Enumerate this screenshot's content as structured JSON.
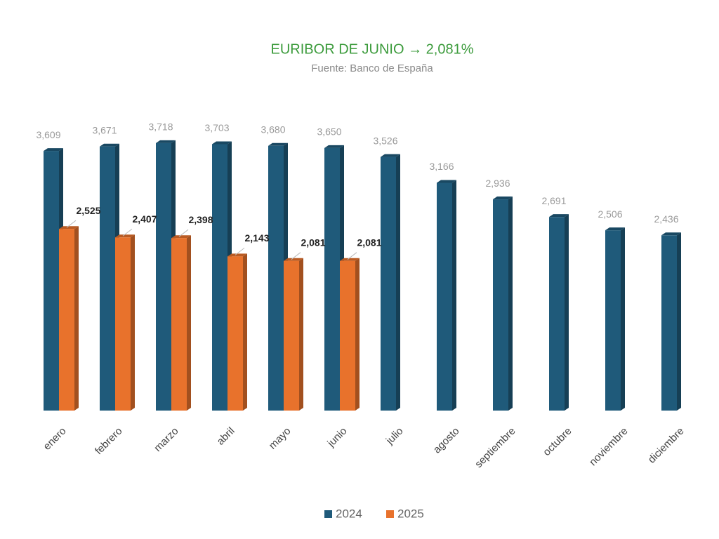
{
  "chart_data": {
    "type": "bar3d",
    "title": "EURIBOR DE JUNIO → 2,081%",
    "subtitle": "Fuente: Banco de España",
    "categories": [
      "enero",
      "febrero",
      "marzo",
      "abril",
      "mayo",
      "junio",
      "julio",
      "agosto",
      "septiembre",
      "octubre",
      "noviembre",
      "diciembre"
    ],
    "series": [
      {
        "name": "2024",
        "color": "#1f5a7a",
        "values": [
          3.609,
          3.671,
          3.718,
          3.703,
          3.68,
          3.65,
          3.526,
          3.166,
          2.936,
          2.691,
          2.506,
          2.436
        ],
        "value_labels": [
          "3,609",
          "3,671",
          "3,718",
          "3,703",
          "3,680",
          "3,650",
          "3,526",
          "3,166",
          "2,936",
          "2,691",
          "2,506",
          "2,436"
        ]
      },
      {
        "name": "2025",
        "color": "#e8722c",
        "values": [
          2.525,
          2.407,
          2.398,
          2.143,
          2.081,
          2.081,
          null,
          null,
          null,
          null,
          null,
          null
        ],
        "value_labels": [
          "2,525",
          "2,407",
          "2,398",
          "2,143",
          "2,081",
          "2,081",
          null,
          null,
          null,
          null,
          null,
          null
        ]
      }
    ]
  }
}
